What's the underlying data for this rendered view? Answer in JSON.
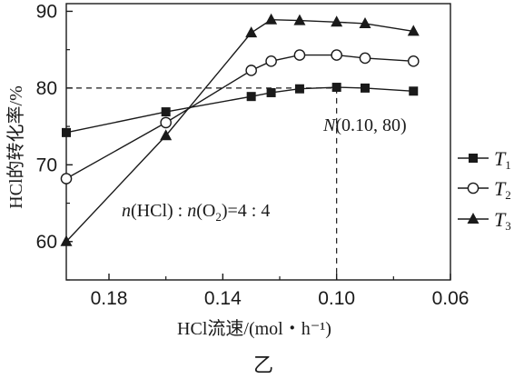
{
  "chart_data": {
    "type": "line",
    "ylabel": "HCl的转化率/%",
    "xlabel": "HCl流速/(mol・h⁻¹)",
    "xlim": [
      0.195,
      0.06
    ],
    "ylim": [
      55,
      91
    ],
    "x_reversed": true,
    "xticks": [
      0.18,
      0.14,
      0.1,
      0.06
    ],
    "xtick_labels": [
      "0.18",
      "0.14",
      "0.10",
      "0.06"
    ],
    "yticks": [
      60,
      70,
      80,
      90
    ],
    "ytick_labels": [
      "60",
      "70",
      "80",
      "90"
    ],
    "series": [
      {
        "name": "T1",
        "marker": "square",
        "x": [
          0.195,
          0.16,
          0.13,
          0.123,
          0.113,
          0.1,
          0.09,
          0.073
        ],
        "y": [
          74.2,
          76.9,
          78.9,
          79.4,
          79.9,
          80.1,
          80.0,
          79.6
        ]
      },
      {
        "name": "T2",
        "marker": "circle-open",
        "x": [
          0.195,
          0.16,
          0.13,
          0.123,
          0.113,
          0.1,
          0.09,
          0.073
        ],
        "y": [
          68.2,
          75.5,
          82.3,
          83.5,
          84.3,
          84.3,
          83.9,
          83.5
        ]
      },
      {
        "name": "T3",
        "marker": "triangle",
        "x": [
          0.195,
          0.16,
          0.13,
          0.123,
          0.113,
          0.1,
          0.09,
          0.073
        ],
        "y": [
          60.0,
          73.8,
          87.2,
          88.9,
          88.8,
          88.6,
          88.4,
          87.4
        ]
      }
    ],
    "annotations": {
      "point_label": "N(0.10, 80)",
      "point_label_prefix": "N",
      "point_label_rest": "(0.10, 80)",
      "point": {
        "x": 0.1,
        "y": 80
      },
      "ratio_parts": {
        "n1": "n",
        "hcl": "(HCl) : ",
        "n2": "n",
        "o2_open": "(O",
        "o2_sub": "2",
        "o2_rest": ")=4 : 4"
      }
    },
    "legend": {
      "placement": "right",
      "entries": [
        {
          "label": "T",
          "sub": "1",
          "marker": "square"
        },
        {
          "label": "T",
          "sub": "2",
          "marker": "circle-open"
        },
        {
          "label": "T",
          "sub": "3",
          "marker": "triangle"
        }
      ]
    },
    "caption": "乙"
  }
}
